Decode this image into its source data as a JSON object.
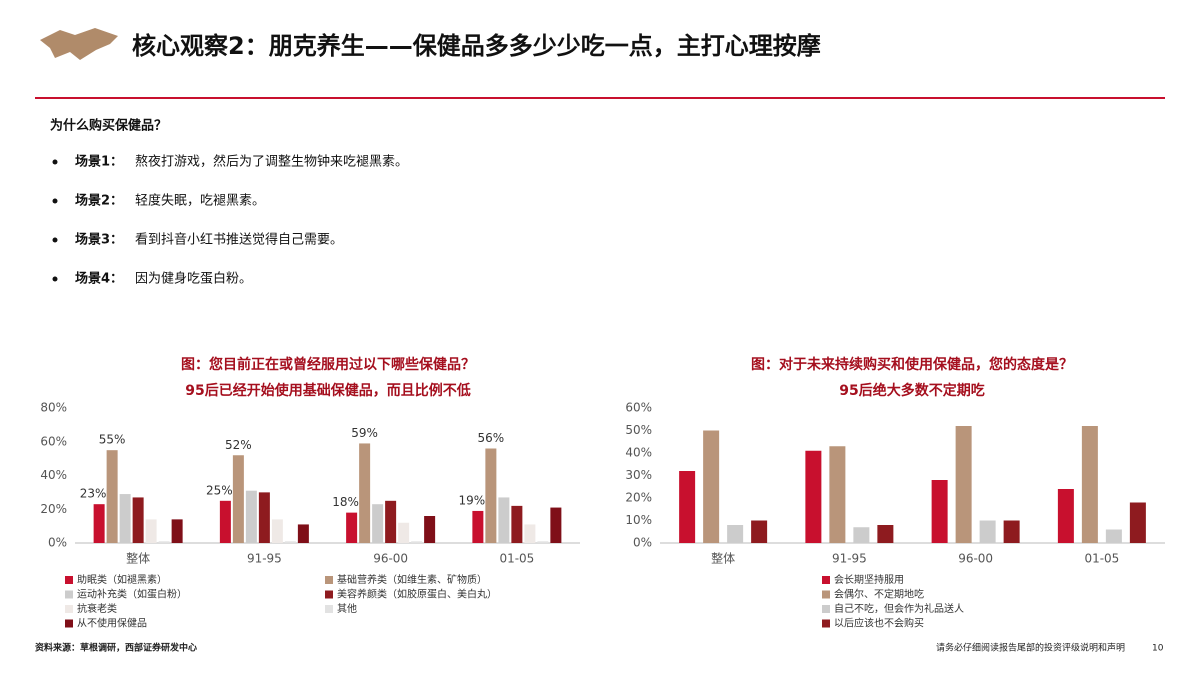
{
  "header": {
    "title": "核心观察2：朋克养生——保健品多多少少吃一点，主打心理按摩"
  },
  "question": "为什么购买保健品？",
  "bullets": [
    {
      "label": "场景1：",
      "text": "熬夜打游戏，然后为了调整生物钟来吃褪黑素。"
    },
    {
      "label": "场景2：",
      "text": "轻度失眠，吃褪黑素。"
    },
    {
      "label": "场景3：",
      "text": "看到抖音小红书推送觉得自己需要。"
    },
    {
      "label": "场景4：",
      "text": "因为健身吃蛋白粉。"
    }
  ],
  "chart_data": [
    {
      "type": "bar",
      "title": "图：您目前正在或曾经服用过以下哪些保健品？",
      "subtitle": "95后已经开始使用基础保健品，而且比例不低",
      "categories": [
        "整体",
        "91-95",
        "96-00",
        "01-05"
      ],
      "ylim": [
        0,
        80
      ],
      "yticks": [
        {
          "value": 0,
          "label": "0%"
        },
        {
          "value": 20,
          "label": "20%"
        },
        {
          "value": 40,
          "label": "40%"
        },
        {
          "value": 60,
          "label": "60%"
        },
        {
          "value": 80,
          "label": "80%"
        }
      ],
      "series": [
        {
          "name": "助眠类（如褪黑素）",
          "color": "#c8102e",
          "values": [
            23,
            25,
            18,
            19
          ],
          "value_labels": [
            "23%",
            "25%",
            "18%",
            "19%"
          ]
        },
        {
          "name": "基础营养类（如维生素、矿物质）",
          "color": "#b9957a",
          "values": [
            55,
            52,
            59,
            56
          ],
          "value_labels": [
            "55%",
            "52%",
            "59%",
            "56%"
          ]
        },
        {
          "name": "运动补充类（如蛋白粉）",
          "color": "#cccccc",
          "values": [
            29,
            31,
            23,
            27
          ]
        },
        {
          "name": "美容养颜类（如胶原蛋白、美白丸）",
          "color": "#8e1b1f",
          "values": [
            27,
            30,
            25,
            22
          ]
        },
        {
          "name": "抗衰老类",
          "color": "#efe9e6",
          "values": [
            14,
            14,
            12,
            11
          ]
        },
        {
          "name": "其他",
          "color": "#e2e2e2",
          "values": [
            1,
            1,
            1,
            1
          ]
        },
        {
          "name": "从不使用保健品",
          "color": "#7f0f18",
          "values": [
            14,
            11,
            16,
            21
          ]
        }
      ]
    },
    {
      "type": "bar",
      "title": "图：对于未来持续购买和使用保健品，您的态度是？",
      "subtitle": "95后绝大多数不定期吃",
      "categories": [
        "整体",
        "91-95",
        "96-00",
        "01-05"
      ],
      "ylim": [
        0,
        60
      ],
      "yticks": [
        {
          "value": 0,
          "label": "0%"
        },
        {
          "value": 10,
          "label": "10%"
        },
        {
          "value": 20,
          "label": "20%"
        },
        {
          "value": 30,
          "label": "30%"
        },
        {
          "value": 40,
          "label": "40%"
        },
        {
          "value": 50,
          "label": "50%"
        },
        {
          "value": 60,
          "label": "60%"
        }
      ],
      "series": [
        {
          "name": "会长期坚持服用",
          "color": "#c8102e",
          "values": [
            32,
            41,
            28,
            24
          ]
        },
        {
          "name": "会偶尔、不定期地吃",
          "color": "#b9957a",
          "values": [
            50,
            43,
            52,
            52
          ]
        },
        {
          "name": "自己不吃，但会作为礼品送人",
          "color": "#cccccc",
          "values": [
            8,
            7,
            10,
            6
          ]
        },
        {
          "name": "以后应该也不会购买",
          "color": "#8e1b1f",
          "values": [
            10,
            8,
            10,
            18
          ]
        }
      ]
    }
  ],
  "footer": {
    "source": "资料来源：草根调研，西部证券研发中心",
    "disclaimer": "请务必仔细阅读报告尾部的投资评级说明和声明",
    "page": "10"
  }
}
